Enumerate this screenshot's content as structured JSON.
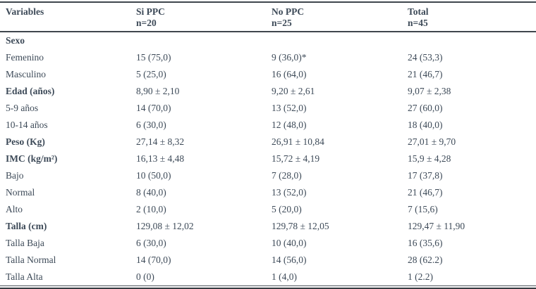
{
  "table": {
    "title_semantic": "clinical-variables-by-ppc-group",
    "header": {
      "variables_label": "Variables",
      "columns": [
        {
          "label": "Si PPC",
          "n": "n=20"
        },
        {
          "label": "No PPC",
          "n": "n=25"
        },
        {
          "label": "Total",
          "n": "n=45"
        }
      ]
    },
    "rows": [
      {
        "label": "Sexo",
        "bold": true,
        "si_ppc": "",
        "no_ppc": "",
        "total": ""
      },
      {
        "label": "Femenino",
        "bold": false,
        "si_ppc": "15 (75,0)",
        "no_ppc": "9 (36,0)*",
        "total": "24 (53,3)"
      },
      {
        "label": "Masculino",
        "bold": false,
        "si_ppc": "5 (25,0)",
        "no_ppc": "16 (64,0)",
        "total": "21 (46,7)"
      },
      {
        "label": "Edad (años)",
        "bold": true,
        "si_ppc": "8,90 ± 2,10",
        "no_ppc": "9,20 ± 2,61",
        "total": "9,07 ± 2,38"
      },
      {
        "label": "5-9 años",
        "bold": false,
        "si_ppc": "14 (70,0)",
        "no_ppc": "13 (52,0)",
        "total": "27 (60,0)"
      },
      {
        "label": "10-14 años",
        "bold": false,
        "si_ppc": "6 (30,0)",
        "no_ppc": "12 (48,0)",
        "total": "18 (40,0)"
      },
      {
        "label": "Peso (Kg)",
        "bold": true,
        "si_ppc": "27,14 ± 8,32",
        "no_ppc": "26,91 ± 10,84",
        "total": "27,01 ± 9,70"
      },
      {
        "label": "IMC (kg/m²)",
        "bold": true,
        "si_ppc": "16,13 ± 4,48",
        "no_ppc": "15,72 ± 4,19",
        "total": "15,9 ± 4,28"
      },
      {
        "label": "Bajo",
        "bold": false,
        "si_ppc": "10 (50,0)",
        "no_ppc": "7 (28,0)",
        "total": "17 (37,8)"
      },
      {
        "label": "Normal",
        "bold": false,
        "si_ppc": "8 (40,0)",
        "no_ppc": "13 (52,0)",
        "total": "21 (46,7)"
      },
      {
        "label": "Alto",
        "bold": false,
        "si_ppc": "2 (10,0)",
        "no_ppc": "5 (20,0)",
        "total": "7 (15,6)"
      },
      {
        "label": "Talla (cm)",
        "bold": true,
        "si_ppc": "129,08 ± 12,02",
        "no_ppc": "129,78 ± 12,05",
        "total": "129,47 ± 11,90"
      },
      {
        "label": "Talla Baja",
        "bold": false,
        "si_ppc": "6 (30,0)",
        "no_ppc": "10 (40,0)",
        "total": "16 (35,6)"
      },
      {
        "label": "Talla Normal",
        "bold": false,
        "si_ppc": "14 (70,0)",
        "no_ppc": "14 (56,0)",
        "total": "28 (62.2)"
      },
      {
        "label": "Talla Alta",
        "bold": false,
        "si_ppc": "0 (0)",
        "no_ppc": "1 (4,0)",
        "total": "1 (2.2)"
      }
    ],
    "colors": {
      "text": "#3d4a58",
      "rule": "#3f464d"
    }
  }
}
